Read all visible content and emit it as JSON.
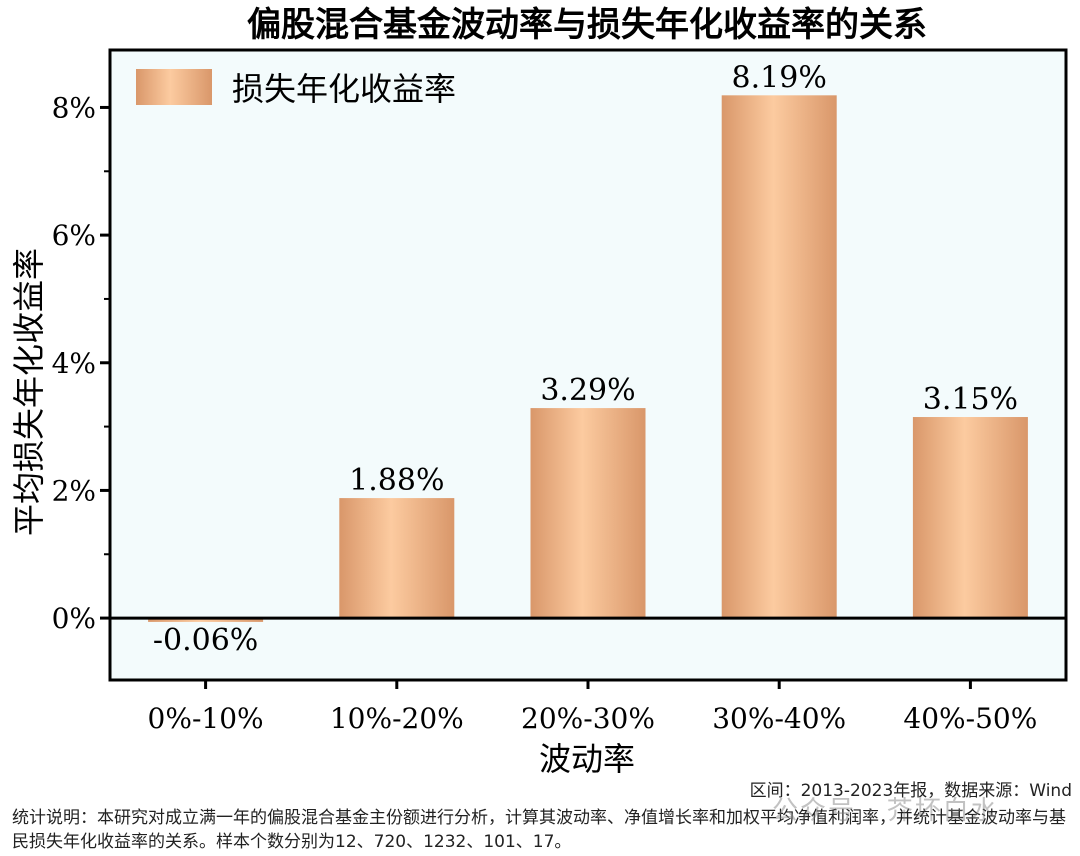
{
  "chart_data": {
    "type": "bar",
    "title": "偏股混合基金波动率与损失年化收益率的关系",
    "xlabel": "波动率",
    "ylabel": "平均损失年化收益率",
    "categories": [
      "0%-10%",
      "10%-20%",
      "20%-30%",
      "30%-40%",
      "40%-50%"
    ],
    "series": [
      {
        "name": "损失年化收益率",
        "values": [
          -0.06,
          1.88,
          3.29,
          8.19,
          3.15
        ]
      }
    ],
    "data_labels": [
      "-0.06%",
      "1.88%",
      "3.29%",
      "8.19%",
      "3.15%"
    ],
    "y_ticks": [
      "0%",
      "2%",
      "4%",
      "6%",
      "8%"
    ],
    "y_tick_values": [
      0,
      2,
      4,
      6,
      8
    ],
    "ylim": [
      -0.97,
      8.9
    ],
    "grid": false,
    "legend_position": "top-left",
    "colors": {
      "bar_light": "#FCCBA0",
      "bar_dark": "#D9976A",
      "plot_bg": "#F3FBFC",
      "axis": "#000000"
    }
  },
  "footer": {
    "range_source": "区间：2013-2023年报，数据来源：Wind",
    "note": "统计说明：本研究对成立满一年的偏股混合基金主份额进行分析，计算其波动率、净值增长率和加权平均净值利润率，并统计基金波动率与基民损失年化收益率的关系。样本个数分别为12、720、1232、101、17。"
  },
  "watermark": "公众号 · 芥坏白水"
}
